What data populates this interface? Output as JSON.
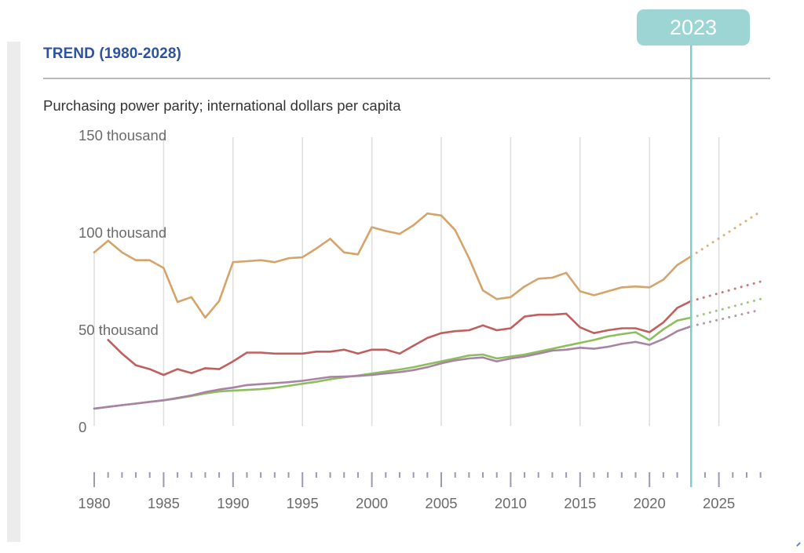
{
  "header": {
    "title": "TREND (1980-2028)",
    "subtitle": "Purchasing power parity; international dollars per capita"
  },
  "highlight": {
    "year_label": "2023",
    "year": 2023,
    "color": "#7ecccc"
  },
  "colors": {
    "title": "#2d52a0",
    "grid": "#dddddd",
    "axis_text": "#6b6b6b",
    "tick": "#9a9ab0"
  },
  "chart_data": {
    "type": "line",
    "title": "TREND (1980-2028)",
    "subtitle": "Purchasing power parity; international dollars per capita",
    "xlabel": "",
    "ylabel": "",
    "xlim": [
      1980,
      2028
    ],
    "ylim": [
      0,
      150000
    ],
    "grid": true,
    "y_ticks": [
      {
        "value": 0,
        "label": "0"
      },
      {
        "value": 50000,
        "label": "50 thousand"
      },
      {
        "value": 100000,
        "label": "100 thousand"
      },
      {
        "value": 150000,
        "label": "150 thousand"
      }
    ],
    "x_ticks": [
      {
        "value": 1980,
        "label": "1980"
      },
      {
        "value": 1985,
        "label": "1985"
      },
      {
        "value": 1990,
        "label": "1990"
      },
      {
        "value": 1995,
        "label": "1995"
      },
      {
        "value": 2000,
        "label": "2000"
      },
      {
        "value": 2005,
        "label": "2005"
      },
      {
        "value": 2010,
        "label": "2010"
      },
      {
        "value": 2015,
        "label": "2015"
      },
      {
        "value": 2020,
        "label": "2020"
      },
      {
        "value": 2025,
        "label": "2025"
      }
    ],
    "projection_from": 2023,
    "series": [
      {
        "name": "series-gold",
        "color": "#d4a46a",
        "x": [
          1980,
          1981,
          1982,
          1983,
          1984,
          1985,
          1986,
          1987,
          1988,
          1989,
          1990,
          1991,
          1992,
          1993,
          1994,
          1995,
          1996,
          1997,
          1998,
          1999,
          2000,
          2001,
          2002,
          2003,
          2004,
          2005,
          2006,
          2007,
          2008,
          2009,
          2010,
          2011,
          2012,
          2013,
          2014,
          2015,
          2016,
          2017,
          2018,
          2019,
          2020,
          2021,
          2022,
          2023
        ],
        "values": [
          90000,
          96000,
          90000,
          86000,
          86000,
          82000,
          64500,
          67000,
          56500,
          65000,
          85000,
          85500,
          86000,
          85000,
          87000,
          87500,
          92000,
          97000,
          90000,
          89000,
          103000,
          101000,
          99500,
          104000,
          110000,
          109000,
          101500,
          87000,
          70500,
          66000,
          67000,
          72500,
          76500,
          77000,
          79500,
          70000,
          68000,
          70000,
          72000,
          72500,
          72000,
          76000,
          83500,
          88000
        ],
        "projection": {
          "x": [
            2023,
            2028
          ],
          "values": [
            88000,
            111000
          ]
        }
      },
      {
        "name": "series-red",
        "color": "#c0605e",
        "x": [
          1981,
          1982,
          1983,
          1984,
          1985,
          1986,
          1987,
          1988,
          1989,
          1990,
          1991,
          1992,
          1993,
          1994,
          1995,
          1996,
          1997,
          1998,
          1999,
          2000,
          2001,
          2002,
          2003,
          2004,
          2005,
          2006,
          2007,
          2008,
          2009,
          2010,
          2011,
          2012,
          2013,
          2014,
          2015,
          2016,
          2017,
          2018,
          2019,
          2020,
          2021,
          2022,
          2023
        ],
        "values": [
          45000,
          38000,
          32000,
          30000,
          27000,
          30000,
          28000,
          30500,
          30000,
          34000,
          38500,
          38500,
          38000,
          38000,
          38000,
          39000,
          39000,
          40000,
          38000,
          40000,
          40000,
          38000,
          42000,
          46000,
          48500,
          49500,
          50000,
          52500,
          50000,
          51000,
          57000,
          58000,
          58000,
          58500,
          51500,
          48500,
          50000,
          51000,
          51000,
          49000,
          54000,
          61500,
          65000
        ],
        "projection": {
          "x": [
            2023,
            2028
          ],
          "values": [
            65000,
            75000
          ]
        }
      },
      {
        "name": "series-green",
        "color": "#8cbf5c",
        "x": [
          1980,
          1981,
          1982,
          1983,
          1984,
          1985,
          1986,
          1987,
          1988,
          1989,
          1990,
          1991,
          1992,
          1993,
          1994,
          1995,
          1996,
          1997,
          1998,
          1999,
          2000,
          2001,
          2002,
          2003,
          2004,
          2005,
          2006,
          2007,
          2008,
          2009,
          2010,
          2011,
          2012,
          2013,
          2014,
          2015,
          2016,
          2017,
          2018,
          2019,
          2020,
          2021,
          2022,
          2023
        ],
        "values": [
          9700,
          10600,
          11500,
          12300,
          13200,
          14000,
          15000,
          16200,
          17500,
          18500,
          19000,
          19300,
          19700,
          20400,
          21400,
          22500,
          23500,
          24800,
          25800,
          26700,
          27800,
          28800,
          29800,
          31000,
          32500,
          34000,
          35500,
          37000,
          37500,
          35500,
          36500,
          37500,
          39000,
          40500,
          42000,
          43500,
          45000,
          46800,
          48000,
          49000,
          45000,
          50500,
          55000,
          56500
        ],
        "projection": {
          "x": [
            2023,
            2028
          ],
          "values": [
            56500,
            66000
          ]
        }
      },
      {
        "name": "series-purple",
        "color": "#a883a3",
        "x": [
          1980,
          1981,
          1982,
          1983,
          1984,
          1985,
          1986,
          1987,
          1988,
          1989,
          1990,
          1991,
          1992,
          1993,
          1994,
          1995,
          1996,
          1997,
          1998,
          1999,
          2000,
          2001,
          2002,
          2003,
          2004,
          2005,
          2006,
          2007,
          2008,
          2009,
          2010,
          2011,
          2012,
          2013,
          2014,
          2015,
          2016,
          2017,
          2018,
          2019,
          2020,
          2021,
          2022,
          2023
        ],
        "values": [
          9700,
          10600,
          11500,
          12300,
          13200,
          14000,
          15200,
          16500,
          18200,
          19500,
          20500,
          21800,
          22300,
          22800,
          23300,
          24000,
          25000,
          26000,
          26200,
          26500,
          27000,
          27800,
          28500,
          29500,
          31000,
          33000,
          34500,
          35500,
          36000,
          34000,
          35500,
          36500,
          38000,
          39500,
          40000,
          41000,
          40500,
          41500,
          43000,
          44000,
          42500,
          45500,
          49500,
          52000
        ],
        "projection": {
          "x": [
            2023,
            2028
          ],
          "values": [
            52000,
            60500
          ]
        }
      }
    ]
  }
}
